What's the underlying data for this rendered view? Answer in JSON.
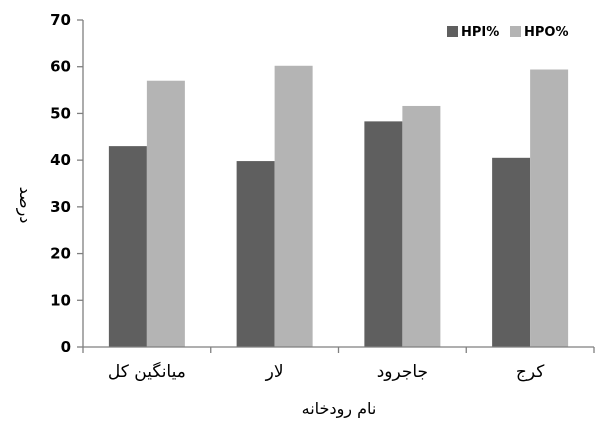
{
  "chart_data": {
    "type": "bar",
    "title": "",
    "xlabel": "نام رودخانه",
    "ylabel": "درصد",
    "ylim": [
      0,
      70
    ],
    "yticks": [
      0,
      10,
      20,
      30,
      40,
      50,
      60,
      70
    ],
    "categories": [
      "میانگین کل",
      "لار",
      "جاجرود",
      "کرج"
    ],
    "series": [
      {
        "name": "HPI%",
        "color": "#5f5f5f",
        "values": [
          43,
          39.8,
          48.3,
          40.5
        ]
      },
      {
        "name": "HPO%",
        "color": "#b4b4b4",
        "values": [
          57,
          60.2,
          51.6,
          59.4
        ]
      }
    ],
    "grid": false,
    "legend_position": "top-right"
  }
}
